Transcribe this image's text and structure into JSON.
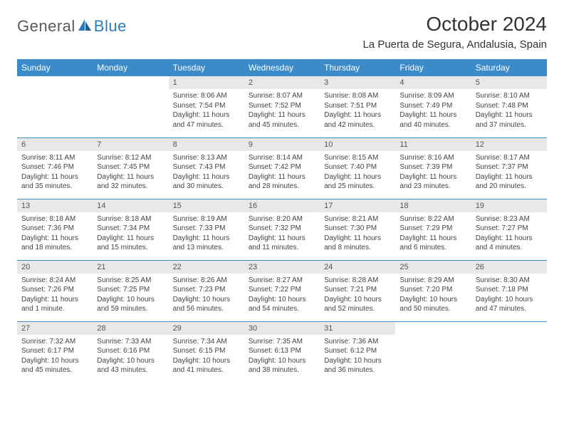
{
  "logo": {
    "text_general": "General",
    "text_blue": "Blue"
  },
  "title": "October 2024",
  "location": "La Puerta de Segura, Andalusia, Spain",
  "colors": {
    "header_bg": "#3b8bc9",
    "header_text": "#ffffff",
    "daynum_bg": "#e8e8e8",
    "border": "#3b8bc9",
    "logo_gray": "#5a5a5a",
    "logo_blue": "#2b7bbf"
  },
  "weekdays": [
    "Sunday",
    "Monday",
    "Tuesday",
    "Wednesday",
    "Thursday",
    "Friday",
    "Saturday"
  ],
  "weeks": [
    [
      {
        "empty": true
      },
      {
        "empty": true
      },
      {
        "day": "1",
        "sunrise": "Sunrise: 8:06 AM",
        "sunset": "Sunset: 7:54 PM",
        "daylight": "Daylight: 11 hours and 47 minutes."
      },
      {
        "day": "2",
        "sunrise": "Sunrise: 8:07 AM",
        "sunset": "Sunset: 7:52 PM",
        "daylight": "Daylight: 11 hours and 45 minutes."
      },
      {
        "day": "3",
        "sunrise": "Sunrise: 8:08 AM",
        "sunset": "Sunset: 7:51 PM",
        "daylight": "Daylight: 11 hours and 42 minutes."
      },
      {
        "day": "4",
        "sunrise": "Sunrise: 8:09 AM",
        "sunset": "Sunset: 7:49 PM",
        "daylight": "Daylight: 11 hours and 40 minutes."
      },
      {
        "day": "5",
        "sunrise": "Sunrise: 8:10 AM",
        "sunset": "Sunset: 7:48 PM",
        "daylight": "Daylight: 11 hours and 37 minutes."
      }
    ],
    [
      {
        "day": "6",
        "sunrise": "Sunrise: 8:11 AM",
        "sunset": "Sunset: 7:46 PM",
        "daylight": "Daylight: 11 hours and 35 minutes."
      },
      {
        "day": "7",
        "sunrise": "Sunrise: 8:12 AM",
        "sunset": "Sunset: 7:45 PM",
        "daylight": "Daylight: 11 hours and 32 minutes."
      },
      {
        "day": "8",
        "sunrise": "Sunrise: 8:13 AM",
        "sunset": "Sunset: 7:43 PM",
        "daylight": "Daylight: 11 hours and 30 minutes."
      },
      {
        "day": "9",
        "sunrise": "Sunrise: 8:14 AM",
        "sunset": "Sunset: 7:42 PM",
        "daylight": "Daylight: 11 hours and 28 minutes."
      },
      {
        "day": "10",
        "sunrise": "Sunrise: 8:15 AM",
        "sunset": "Sunset: 7:40 PM",
        "daylight": "Daylight: 11 hours and 25 minutes."
      },
      {
        "day": "11",
        "sunrise": "Sunrise: 8:16 AM",
        "sunset": "Sunset: 7:39 PM",
        "daylight": "Daylight: 11 hours and 23 minutes."
      },
      {
        "day": "12",
        "sunrise": "Sunrise: 8:17 AM",
        "sunset": "Sunset: 7:37 PM",
        "daylight": "Daylight: 11 hours and 20 minutes."
      }
    ],
    [
      {
        "day": "13",
        "sunrise": "Sunrise: 8:18 AM",
        "sunset": "Sunset: 7:36 PM",
        "daylight": "Daylight: 11 hours and 18 minutes."
      },
      {
        "day": "14",
        "sunrise": "Sunrise: 8:18 AM",
        "sunset": "Sunset: 7:34 PM",
        "daylight": "Daylight: 11 hours and 15 minutes."
      },
      {
        "day": "15",
        "sunrise": "Sunrise: 8:19 AM",
        "sunset": "Sunset: 7:33 PM",
        "daylight": "Daylight: 11 hours and 13 minutes."
      },
      {
        "day": "16",
        "sunrise": "Sunrise: 8:20 AM",
        "sunset": "Sunset: 7:32 PM",
        "daylight": "Daylight: 11 hours and 11 minutes."
      },
      {
        "day": "17",
        "sunrise": "Sunrise: 8:21 AM",
        "sunset": "Sunset: 7:30 PM",
        "daylight": "Daylight: 11 hours and 8 minutes."
      },
      {
        "day": "18",
        "sunrise": "Sunrise: 8:22 AM",
        "sunset": "Sunset: 7:29 PM",
        "daylight": "Daylight: 11 hours and 6 minutes."
      },
      {
        "day": "19",
        "sunrise": "Sunrise: 8:23 AM",
        "sunset": "Sunset: 7:27 PM",
        "daylight": "Daylight: 11 hours and 4 minutes."
      }
    ],
    [
      {
        "day": "20",
        "sunrise": "Sunrise: 8:24 AM",
        "sunset": "Sunset: 7:26 PM",
        "daylight": "Daylight: 11 hours and 1 minute."
      },
      {
        "day": "21",
        "sunrise": "Sunrise: 8:25 AM",
        "sunset": "Sunset: 7:25 PM",
        "daylight": "Daylight: 10 hours and 59 minutes."
      },
      {
        "day": "22",
        "sunrise": "Sunrise: 8:26 AM",
        "sunset": "Sunset: 7:23 PM",
        "daylight": "Daylight: 10 hours and 56 minutes."
      },
      {
        "day": "23",
        "sunrise": "Sunrise: 8:27 AM",
        "sunset": "Sunset: 7:22 PM",
        "daylight": "Daylight: 10 hours and 54 minutes."
      },
      {
        "day": "24",
        "sunrise": "Sunrise: 8:28 AM",
        "sunset": "Sunset: 7:21 PM",
        "daylight": "Daylight: 10 hours and 52 minutes."
      },
      {
        "day": "25",
        "sunrise": "Sunrise: 8:29 AM",
        "sunset": "Sunset: 7:20 PM",
        "daylight": "Daylight: 10 hours and 50 minutes."
      },
      {
        "day": "26",
        "sunrise": "Sunrise: 8:30 AM",
        "sunset": "Sunset: 7:18 PM",
        "daylight": "Daylight: 10 hours and 47 minutes."
      }
    ],
    [
      {
        "day": "27",
        "sunrise": "Sunrise: 7:32 AM",
        "sunset": "Sunset: 6:17 PM",
        "daylight": "Daylight: 10 hours and 45 minutes."
      },
      {
        "day": "28",
        "sunrise": "Sunrise: 7:33 AM",
        "sunset": "Sunset: 6:16 PM",
        "daylight": "Daylight: 10 hours and 43 minutes."
      },
      {
        "day": "29",
        "sunrise": "Sunrise: 7:34 AM",
        "sunset": "Sunset: 6:15 PM",
        "daylight": "Daylight: 10 hours and 41 minutes."
      },
      {
        "day": "30",
        "sunrise": "Sunrise: 7:35 AM",
        "sunset": "Sunset: 6:13 PM",
        "daylight": "Daylight: 10 hours and 38 minutes."
      },
      {
        "day": "31",
        "sunrise": "Sunrise: 7:36 AM",
        "sunset": "Sunset: 6:12 PM",
        "daylight": "Daylight: 10 hours and 36 minutes."
      },
      {
        "empty": true
      },
      {
        "empty": true
      }
    ]
  ]
}
